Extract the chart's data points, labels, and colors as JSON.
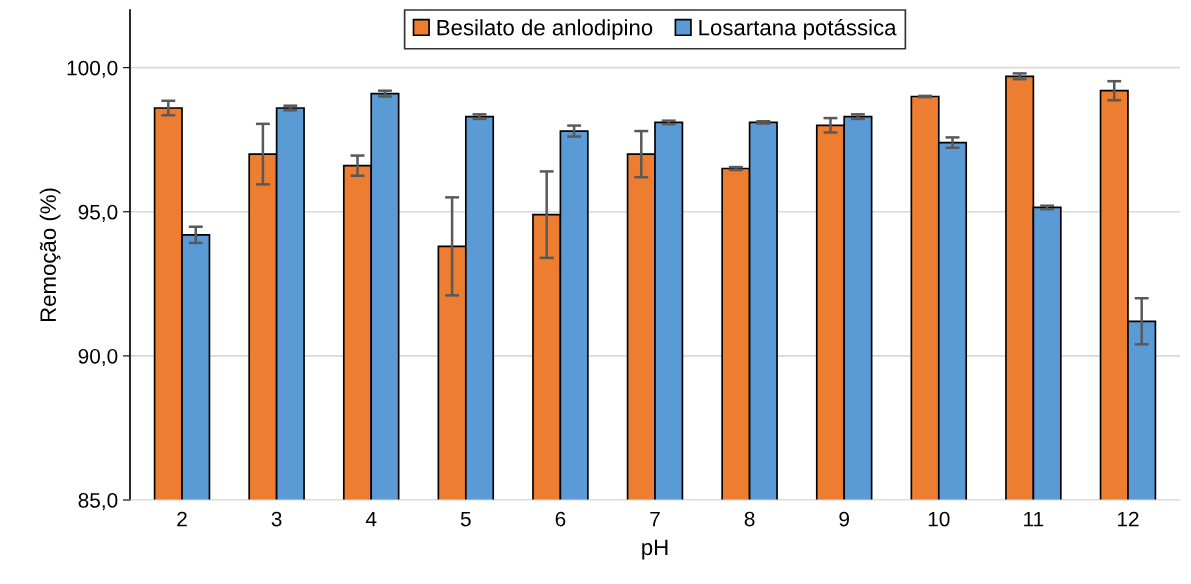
{
  "chart_data": {
    "type": "bar",
    "xlabel": "pH",
    "ylabel": "Remoção (%)",
    "categories": [
      "2",
      "3",
      "4",
      "5",
      "6",
      "7",
      "8",
      "9",
      "10",
      "11",
      "12"
    ],
    "series": [
      {
        "name": "Besilato de anlodipino",
        "color": "#ed7d31",
        "values": [
          98.6,
          97.0,
          96.6,
          93.8,
          94.9,
          97.0,
          96.5,
          98.0,
          99.0,
          99.7,
          99.2
        ],
        "errors": [
          0.25,
          1.05,
          0.35,
          1.7,
          1.5,
          0.8,
          0.05,
          0.25,
          0.02,
          0.1,
          0.33
        ]
      },
      {
        "name": "Losartana potássica",
        "color": "#5b9bd5",
        "values": [
          94.2,
          98.6,
          99.1,
          98.3,
          97.8,
          98.1,
          98.1,
          98.3,
          97.4,
          95.15,
          91.2
        ],
        "errors": [
          0.28,
          0.08,
          0.1,
          0.08,
          0.19,
          0.06,
          0.04,
          0.08,
          0.18,
          0.06,
          0.8
        ]
      }
    ],
    "ylim": [
      85,
      102
    ],
    "yticks": [
      {
        "value": 85,
        "label": "85,0"
      },
      {
        "value": 90,
        "label": "90,0"
      },
      {
        "value": 95,
        "label": "95,0"
      },
      {
        "value": 100,
        "label": "100,0"
      }
    ],
    "grid": "y",
    "legend": "top"
  }
}
